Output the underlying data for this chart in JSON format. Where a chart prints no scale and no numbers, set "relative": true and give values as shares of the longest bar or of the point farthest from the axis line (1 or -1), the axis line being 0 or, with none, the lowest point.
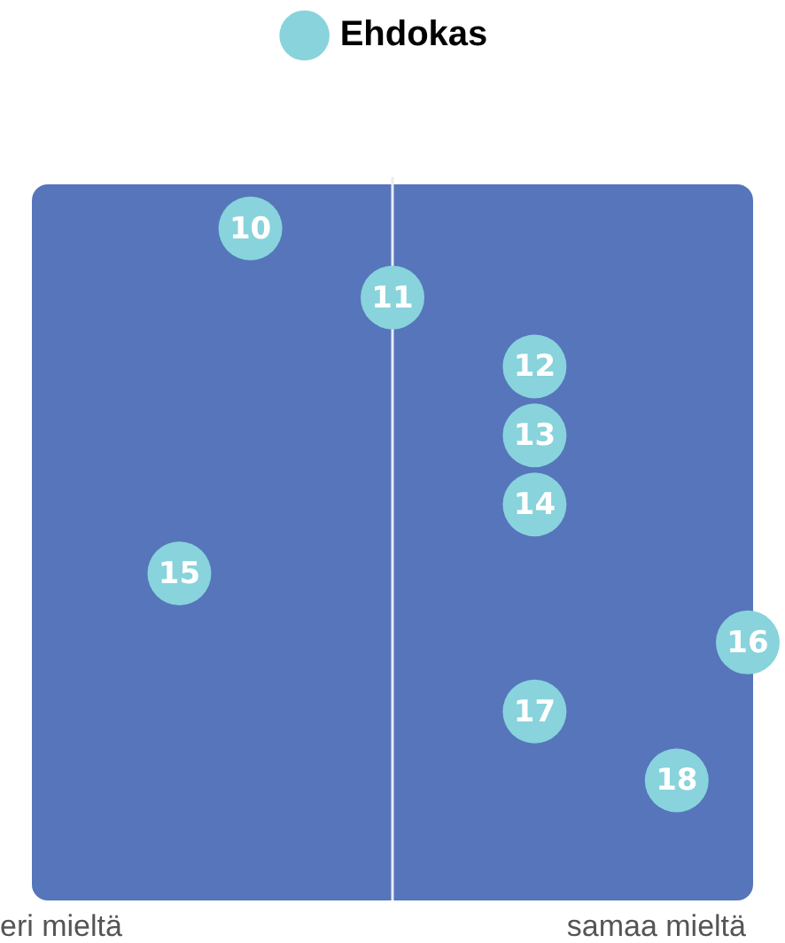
{
  "chart_data": {
    "type": "scatter",
    "orientation": "horizontal",
    "relative": true,
    "marker": "circle",
    "legend": "top",
    "categories": [
      "10",
      "11",
      "12",
      "13",
      "14",
      "15",
      "16",
      "17",
      "18"
    ],
    "series": [
      {
        "name": "Ehdokas",
        "color": "#88d3dc",
        "values": [
          -0.4,
          0,
          0.4,
          0.4,
          0.4,
          -0.6,
          1,
          0.4,
          0.8
        ]
      }
    ],
    "annotations": [
      "eri mieltä",
      "samaa mieltä"
    ]
  }
}
